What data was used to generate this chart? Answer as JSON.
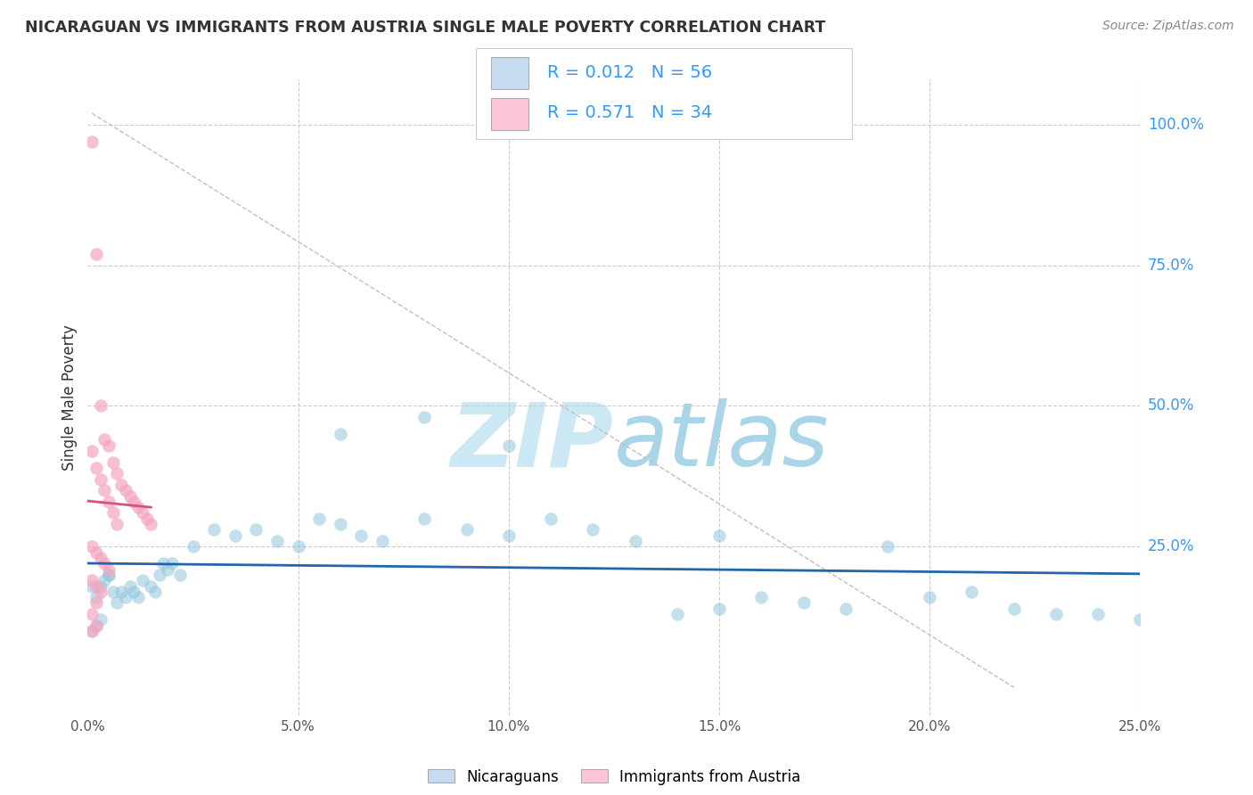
{
  "title": "NICARAGUAN VS IMMIGRANTS FROM AUSTRIA SINGLE MALE POVERTY CORRELATION CHART",
  "source": "Source: ZipAtlas.com",
  "ylabel": "Single Male Poverty",
  "blue_scatter": [
    [
      0.001,
      0.18
    ],
    [
      0.002,
      0.16
    ],
    [
      0.003,
      0.18
    ],
    [
      0.004,
      0.19
    ],
    [
      0.005,
      0.2
    ],
    [
      0.006,
      0.17
    ],
    [
      0.007,
      0.15
    ],
    [
      0.008,
      0.17
    ],
    [
      0.009,
      0.16
    ],
    [
      0.01,
      0.18
    ],
    [
      0.011,
      0.17
    ],
    [
      0.012,
      0.16
    ],
    [
      0.013,
      0.19
    ],
    [
      0.015,
      0.18
    ],
    [
      0.016,
      0.17
    ],
    [
      0.017,
      0.2
    ],
    [
      0.018,
      0.22
    ],
    [
      0.019,
      0.21
    ],
    [
      0.02,
      0.22
    ],
    [
      0.022,
      0.2
    ],
    [
      0.025,
      0.25
    ],
    [
      0.03,
      0.28
    ],
    [
      0.035,
      0.27
    ],
    [
      0.04,
      0.28
    ],
    [
      0.045,
      0.26
    ],
    [
      0.05,
      0.25
    ],
    [
      0.055,
      0.3
    ],
    [
      0.06,
      0.29
    ],
    [
      0.065,
      0.27
    ],
    [
      0.07,
      0.26
    ],
    [
      0.08,
      0.3
    ],
    [
      0.09,
      0.28
    ],
    [
      0.1,
      0.27
    ],
    [
      0.11,
      0.3
    ],
    [
      0.12,
      0.28
    ],
    [
      0.13,
      0.26
    ],
    [
      0.14,
      0.13
    ],
    [
      0.15,
      0.14
    ],
    [
      0.16,
      0.16
    ],
    [
      0.17,
      0.15
    ],
    [
      0.18,
      0.14
    ],
    [
      0.2,
      0.16
    ],
    [
      0.22,
      0.14
    ],
    [
      0.24,
      0.13
    ],
    [
      0.25,
      0.12
    ],
    [
      0.001,
      0.1
    ],
    [
      0.002,
      0.11
    ],
    [
      0.003,
      0.12
    ],
    [
      0.06,
      0.45
    ],
    [
      0.08,
      0.48
    ],
    [
      0.1,
      0.43
    ],
    [
      0.15,
      0.27
    ],
    [
      0.19,
      0.25
    ],
    [
      0.21,
      0.17
    ],
    [
      0.23,
      0.13
    ],
    [
      0.005,
      0.2
    ]
  ],
  "pink_scatter": [
    [
      0.001,
      0.97
    ],
    [
      0.002,
      0.77
    ],
    [
      0.003,
      0.5
    ],
    [
      0.004,
      0.44
    ],
    [
      0.005,
      0.43
    ],
    [
      0.006,
      0.4
    ],
    [
      0.007,
      0.38
    ],
    [
      0.008,
      0.36
    ],
    [
      0.009,
      0.35
    ],
    [
      0.01,
      0.34
    ],
    [
      0.011,
      0.33
    ],
    [
      0.012,
      0.32
    ],
    [
      0.013,
      0.31
    ],
    [
      0.014,
      0.3
    ],
    [
      0.015,
      0.29
    ],
    [
      0.001,
      0.42
    ],
    [
      0.002,
      0.39
    ],
    [
      0.003,
      0.37
    ],
    [
      0.004,
      0.35
    ],
    [
      0.005,
      0.33
    ],
    [
      0.006,
      0.31
    ],
    [
      0.007,
      0.29
    ],
    [
      0.001,
      0.25
    ],
    [
      0.002,
      0.24
    ],
    [
      0.003,
      0.23
    ],
    [
      0.004,
      0.22
    ],
    [
      0.005,
      0.21
    ],
    [
      0.001,
      0.19
    ],
    [
      0.002,
      0.18
    ],
    [
      0.003,
      0.17
    ],
    [
      0.002,
      0.15
    ],
    [
      0.001,
      0.13
    ],
    [
      0.001,
      0.1
    ],
    [
      0.002,
      0.11
    ]
  ],
  "blue_color": "#92c5de",
  "pink_color": "#f4a6c0",
  "blue_line_color": "#2166ac",
  "pink_line_color": "#d6537a",
  "blue_legend_fill": "#c6dbef",
  "pink_legend_fill": "#fcc5d8",
  "grid_color": "#cccccc",
  "xlim": [
    0,
    0.25
  ],
  "ylim": [
    -0.05,
    1.08
  ],
  "figsize": [
    14.06,
    8.92
  ],
  "dpi": 100
}
